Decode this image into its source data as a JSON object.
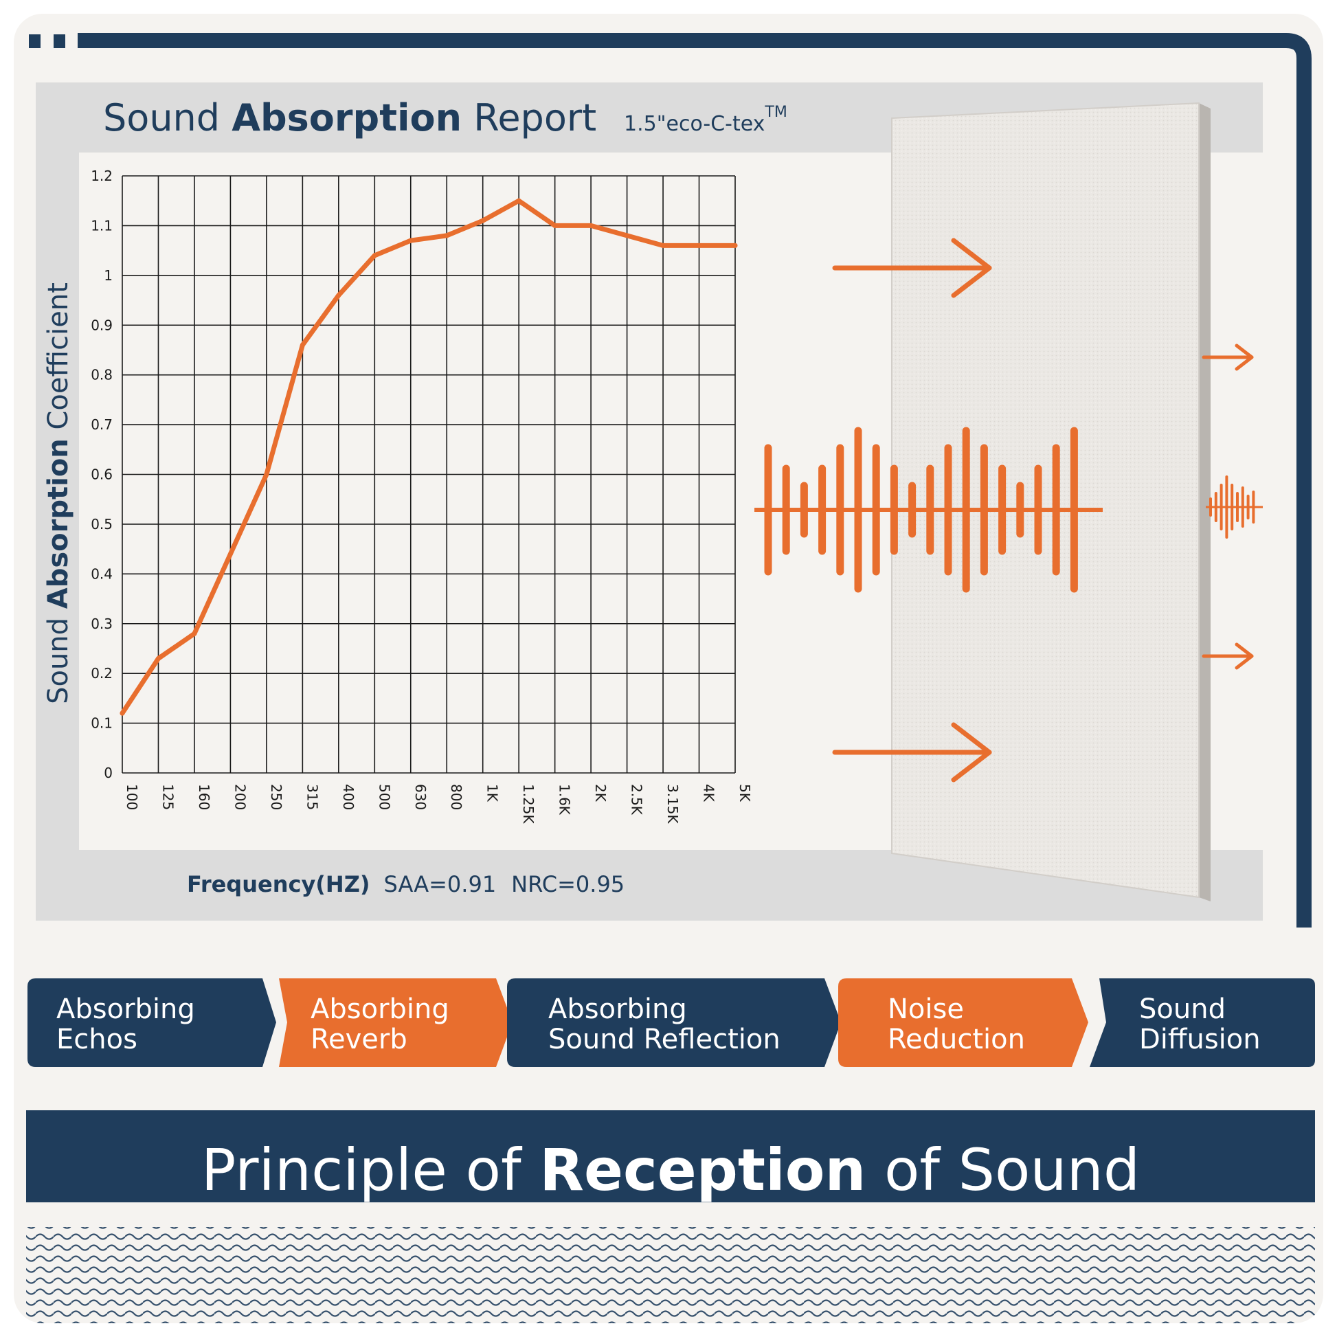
{
  "header": {
    "title_parts": [
      "Sound ",
      "Absorption",
      " Report"
    ],
    "product": "1.5\"eco-C-tex",
    "trademark": "TM"
  },
  "axes": {
    "ylabel_parts": [
      "Sound ",
      "Absorption",
      " Coefficient"
    ],
    "xlabel": "Frequency(HZ)",
    "saa": "SAA=0.91",
    "nrc": "NRC=0.95"
  },
  "chart_data": {
    "type": "line",
    "title": "Sound Absorption Report",
    "xlabel": "Frequency(HZ)",
    "ylabel": "Sound Absorption Coefficient",
    "categories": [
      "100",
      "125",
      "160",
      "200",
      "250",
      "315",
      "400",
      "500",
      "630",
      "800",
      "1K",
      "1.25K",
      "1.6K",
      "2K",
      "2.5K",
      "3.15K",
      "4K",
      "5K"
    ],
    "values": [
      0.12,
      0.23,
      0.28,
      0.44,
      0.6,
      0.86,
      0.96,
      1.04,
      1.07,
      1.08,
      1.11,
      1.15,
      1.1,
      1.1,
      1.08,
      1.06,
      1.06,
      1.06
    ],
    "yticks": [
      "0",
      "0.1",
      "0.2",
      "0.3",
      "0.4",
      "0.5",
      "0.6",
      "0.7",
      "0.8",
      "0.9",
      "1",
      "1.1",
      "1.2"
    ],
    "ylim": [
      0,
      1.2
    ],
    "grid": true,
    "legend": "none"
  },
  "features": [
    {
      "line1": "Absorbing",
      "line2": "Echos"
    },
    {
      "line1": "Absorbing",
      "line2": "Reverb"
    },
    {
      "line1": "Absorbing",
      "line2": "Sound Reflection"
    },
    {
      "line1": "Noise",
      "line2": "Reduction"
    },
    {
      "line1": "Sound",
      "line2": "Diffusion"
    }
  ],
  "banner": {
    "title_parts": [
      "Principle of ",
      "Reception",
      " of Sound"
    ]
  },
  "colors": {
    "navy": "#1f3d5c",
    "orange": "#e86e2e",
    "panel_grey": "#dcdcdc",
    "background": "#f5f3f0",
    "foam": "#ebe8e4"
  },
  "icons": [
    "arrow-right-icon",
    "sound-wave-icon",
    "acoustic-panel-icon"
  ]
}
